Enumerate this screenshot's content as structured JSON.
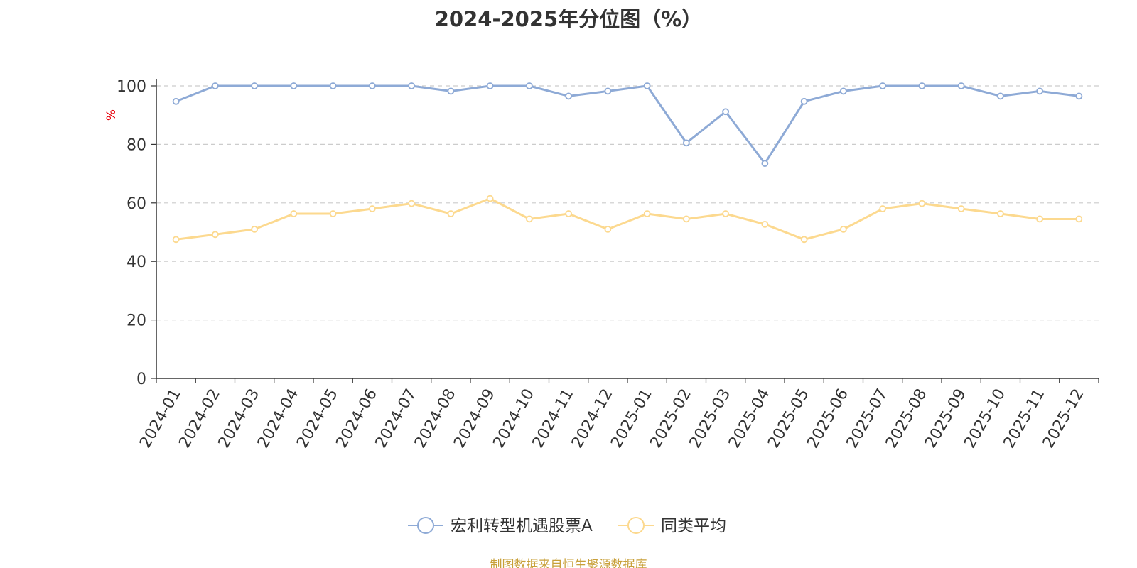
{
  "chart_data": {
    "type": "line",
    "title": "2024-2025年分位图（%）",
    "ylabel": "%",
    "xlabel": "",
    "ylim": [
      0,
      100
    ],
    "yticks": [
      0,
      20,
      40,
      60,
      80,
      100
    ],
    "grid": true,
    "legend_position": "bottom",
    "categories": [
      "2024-01",
      "2024-02",
      "2024-03",
      "2024-04",
      "2024-05",
      "2024-06",
      "2024-07",
      "2024-08",
      "2024-09",
      "2024-10",
      "2024-11",
      "2024-12",
      "2025-01",
      "2025-02",
      "2025-03",
      "2025-04",
      "2025-05",
      "2025-06",
      "2025-07",
      "2025-08",
      "2025-09",
      "2025-10",
      "2025-11",
      "2025-12"
    ],
    "series": [
      {
        "name": "宏利转型机遇股票A",
        "color": "#8eaad6",
        "values": [
          94.7,
          100,
          100,
          100,
          100,
          100,
          100,
          98.2,
          100,
          100,
          96.5,
          98.2,
          100,
          80.5,
          91.2,
          73.5,
          94.7,
          98.2,
          100,
          100,
          100,
          96.5,
          98.2,
          96.5
        ]
      },
      {
        "name": "同类平均",
        "color": "#fcd98f",
        "values": [
          47.5,
          49.2,
          51,
          56.3,
          56.3,
          58,
          59.8,
          56.3,
          61.5,
          54.5,
          56.3,
          51,
          56.3,
          54.5,
          56.3,
          52.7,
          47.5,
          51,
          58,
          59.8,
          58,
          56.3,
          54.5,
          54.5
        ]
      }
    ],
    "source": "制图数据来自恒生聚源数据库"
  }
}
